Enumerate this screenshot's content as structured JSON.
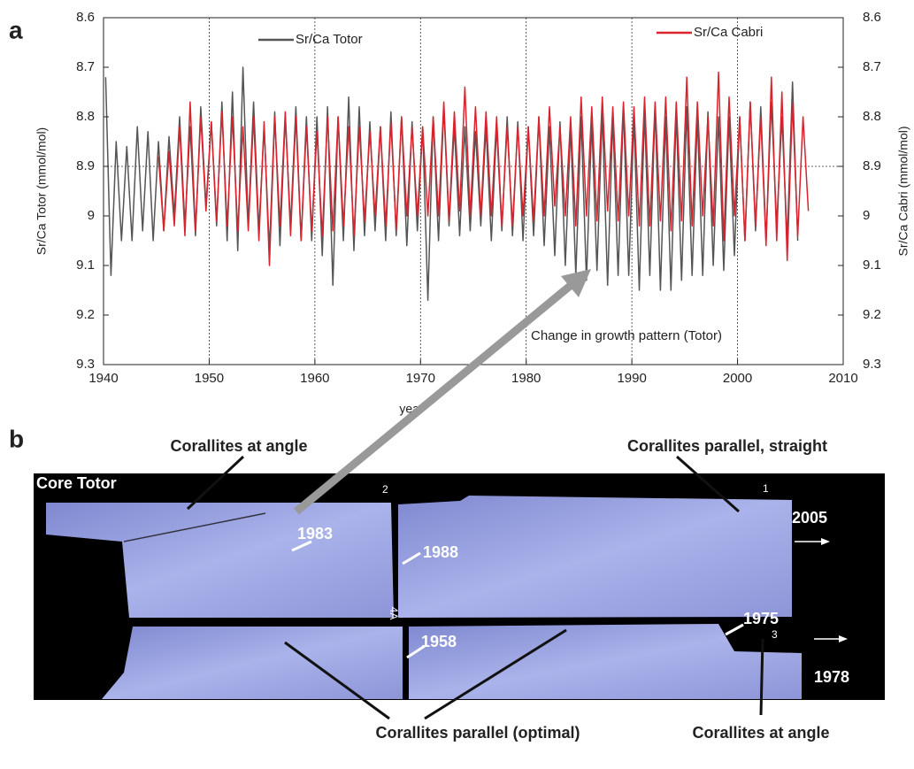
{
  "chart_data": {
    "type": "line",
    "panel_label": "a",
    "x_label": "year",
    "y_label": "Sr/Ca Totor (mmol/mol)",
    "y2_label": "Sr/Ca Cabri (mmol/mol)",
    "annotation": "Change in growth pattern (Totor)",
    "xlim": [
      1940,
      2010
    ],
    "xticks": [
      1940,
      1950,
      1960,
      1970,
      1980,
      1990,
      2000,
      2010
    ],
    "ylim": [
      9.3,
      8.6
    ],
    "yticks": [
      8.6,
      8.7,
      8.8,
      8.9,
      9,
      9.1,
      9.2,
      9.3
    ],
    "y2lim": [
      9.3,
      8.6
    ],
    "y2ticks": [
      8.6,
      8.7,
      8.8,
      8.9,
      9,
      9.1,
      9.2,
      9.3
    ],
    "grid_x": true,
    "reference_y": 8.9,
    "series": [
      {
        "name": "Sr/Ca Totor",
        "color": "#555555",
        "x": [
          1940.2,
          1940.7,
          1941.2,
          1941.7,
          1942.2,
          1942.7,
          1943.2,
          1943.7,
          1944.2,
          1944.7,
          1945.2,
          1945.7,
          1946.2,
          1946.7,
          1947.2,
          1947.7,
          1948.2,
          1948.7,
          1949.2,
          1949.7,
          1950.2,
          1950.7,
          1951.2,
          1951.7,
          1952.2,
          1952.7,
          1953.2,
          1953.7,
          1954.2,
          1954.7,
          1955.2,
          1955.7,
          1956.2,
          1956.7,
          1957.2,
          1957.7,
          1958.2,
          1958.7,
          1959.2,
          1959.7,
          1960.2,
          1960.7,
          1961.2,
          1961.7,
          1962.2,
          1962.7,
          1963.2,
          1963.7,
          1964.2,
          1964.7,
          1965.2,
          1965.7,
          1966.2,
          1966.7,
          1967.2,
          1967.7,
          1968.2,
          1968.7,
          1969.2,
          1969.7,
          1970.2,
          1970.7,
          1971.2,
          1971.7,
          1972.2,
          1972.7,
          1973.2,
          1973.7,
          1974.2,
          1974.7,
          1975.2,
          1975.7,
          1976.2,
          1976.7,
          1977.2,
          1977.7,
          1978.2,
          1978.7,
          1979.2,
          1979.7,
          1980.2,
          1980.7,
          1981.2,
          1981.7,
          1982.2,
          1982.7,
          1983.2,
          1983.7,
          1984.2,
          1984.7,
          1985.2,
          1985.7,
          1986.2,
          1986.7,
          1987.2,
          1987.7,
          1988.2,
          1988.7,
          1989.2,
          1989.7,
          1990.2,
          1990.7,
          1991.2,
          1991.7,
          1992.2,
          1992.7,
          1993.2,
          1993.7,
          1994.2,
          1994.7,
          1995.2,
          1995.7,
          1996.2,
          1996.7,
          1997.2,
          1997.7,
          1998.2,
          1998.7,
          1999.2,
          1999.7,
          2000.2,
          2000.7,
          2001.2,
          2001.7,
          2002.2,
          2002.7,
          2003.2,
          2003.7,
          2004.2,
          2004.7,
          2005.2,
          2005.7
        ],
        "values": [
          8.72,
          9.12,
          8.85,
          9.05,
          8.86,
          9.05,
          8.82,
          9.03,
          8.83,
          9.05,
          8.85,
          9.03,
          8.84,
          9.0,
          8.8,
          9.02,
          8.82,
          9.04,
          8.78,
          8.98,
          8.81,
          9.02,
          8.77,
          9.05,
          8.75,
          9.07,
          8.7,
          9.02,
          8.77,
          9.03,
          8.82,
          9.07,
          8.79,
          9.06,
          8.8,
          9.02,
          8.78,
          9.05,
          8.8,
          9.05,
          8.8,
          9.08,
          8.78,
          9.14,
          8.8,
          9.05,
          8.76,
          9.07,
          8.78,
          9.04,
          8.81,
          9.03,
          8.82,
          9.05,
          8.79,
          9.04,
          8.8,
          9.06,
          8.81,
          9.03,
          8.82,
          9.17,
          8.8,
          9.05,
          8.78,
          9.02,
          8.82,
          9.04,
          8.82,
          9.03,
          8.83,
          9.02,
          8.82,
          9.05,
          8.82,
          9.03,
          8.8,
          9.04,
          8.81,
          9.05,
          8.82,
          9.04,
          8.8,
          9.06,
          8.82,
          9.08,
          8.81,
          9.1,
          8.82,
          9.12,
          8.8,
          9.13,
          8.81,
          9.11,
          8.79,
          9.14,
          8.8,
          9.12,
          8.78,
          9.12,
          8.8,
          9.15,
          8.79,
          9.12,
          8.78,
          9.15,
          8.8,
          9.15,
          8.79,
          9.13,
          8.78,
          9.12,
          8.8,
          9.12,
          8.79,
          9.1,
          8.8,
          9.11,
          8.8,
          9.08,
          8.8,
          9.05,
          8.77,
          9.03,
          8.78,
          9.05,
          8.77,
          9.02,
          8.8,
          9.05,
          8.73,
          9.05
        ]
      },
      {
        "name": "Sr/Ca Cabri",
        "color": "#d9232d",
        "axis": "y2",
        "x": [
          1945.2,
          1945.7,
          1946.2,
          1946.7,
          1947.2,
          1947.7,
          1948.2,
          1948.7,
          1949.2,
          1949.7,
          1950.2,
          1950.7,
          1951.2,
          1951.7,
          1952.2,
          1952.7,
          1953.2,
          1953.7,
          1954.2,
          1954.7,
          1955.2,
          1955.7,
          1956.2,
          1956.7,
          1957.2,
          1957.7,
          1958.2,
          1958.7,
          1959.2,
          1959.7,
          1960.2,
          1960.7,
          1961.2,
          1961.7,
          1962.2,
          1962.7,
          1963.2,
          1963.7,
          1964.2,
          1964.7,
          1965.2,
          1965.7,
          1966.2,
          1966.7,
          1967.2,
          1967.7,
          1968.2,
          1968.7,
          1969.2,
          1969.7,
          1970.2,
          1970.7,
          1971.2,
          1971.7,
          1972.2,
          1972.7,
          1973.2,
          1973.7,
          1974.2,
          1974.7,
          1975.2,
          1975.7,
          1976.2,
          1976.7,
          1977.2,
          1977.7,
          1978.2,
          1978.7,
          1979.2,
          1979.7,
          1980.2,
          1980.7,
          1981.2,
          1981.7,
          1982.2,
          1982.7,
          1983.2,
          1983.7,
          1984.2,
          1984.7,
          1985.2,
          1985.7,
          1986.2,
          1986.7,
          1987.2,
          1987.7,
          1988.2,
          1988.7,
          1989.2,
          1989.7,
          1990.2,
          1990.7,
          1991.2,
          1991.7,
          1992.2,
          1992.7,
          1993.2,
          1993.7,
          1994.2,
          1994.7,
          1995.2,
          1995.7,
          1996.2,
          1996.7,
          1997.2,
          1997.7,
          1998.2,
          1998.7,
          1999.2,
          1999.7,
          2000.2,
          2000.7,
          2001.2,
          2001.7,
          2002.2,
          2002.7,
          2003.2,
          2003.7,
          2004.2,
          2004.7,
          2005.2,
          2005.7,
          2006.2,
          2006.7
        ],
        "values": [
          8.88,
          9.03,
          8.87,
          9.02,
          8.82,
          9.04,
          8.77,
          9.03,
          8.8,
          8.99,
          8.81,
          9.01,
          8.79,
          9.02,
          8.8,
          9.03,
          8.82,
          9.03,
          8.8,
          9.05,
          8.81,
          9.1,
          8.8,
          9.02,
          8.79,
          9.04,
          8.8,
          9.05,
          8.82,
          9.03,
          8.83,
          9.04,
          8.8,
          9.03,
          8.8,
          9.02,
          8.82,
          9.04,
          8.82,
          9.01,
          8.83,
          9.0,
          8.82,
          9.02,
          8.81,
          9.03,
          8.8,
          9.0,
          8.82,
          9.0,
          8.82,
          9.0,
          8.8,
          9.0,
          8.77,
          9.01,
          8.79,
          8.99,
          8.74,
          9.0,
          8.78,
          9.0,
          8.79,
          9.0,
          8.8,
          9.02,
          8.82,
          9.02,
          8.82,
          9.0,
          8.82,
          9.01,
          8.8,
          9.0,
          8.78,
          8.98,
          8.82,
          9.0,
          8.8,
          9.02,
          8.76,
          9.0,
          8.78,
          9.01,
          8.76,
          8.99,
          8.78,
          9.01,
          8.77,
          9.0,
          8.78,
          9.02,
          8.76,
          9.02,
          8.77,
          9.01,
          8.76,
          9.03,
          8.77,
          9.01,
          8.72,
          9.02,
          8.77,
          9.0,
          8.8,
          9.02,
          8.71,
          9.05,
          8.76,
          9.0,
          8.8,
          9.05,
          8.77,
          9.02,
          8.8,
          9.06,
          8.72,
          9.05,
          8.75,
          9.09,
          8.77,
          9.04,
          8.8,
          8.99
        ]
      }
    ]
  },
  "photo": {
    "panel_label": "b",
    "title": "Core Totor",
    "callouts": [
      "Corallites at angle",
      "Corallites parallel, straight",
      "Corallites parallel (optimal)",
      "Corallites at angle"
    ],
    "year_marks": [
      "1983",
      "1988",
      "2005",
      "1958",
      "1975",
      "1978"
    ],
    "section_numbers": [
      "2",
      "1",
      "4A",
      "3"
    ]
  }
}
